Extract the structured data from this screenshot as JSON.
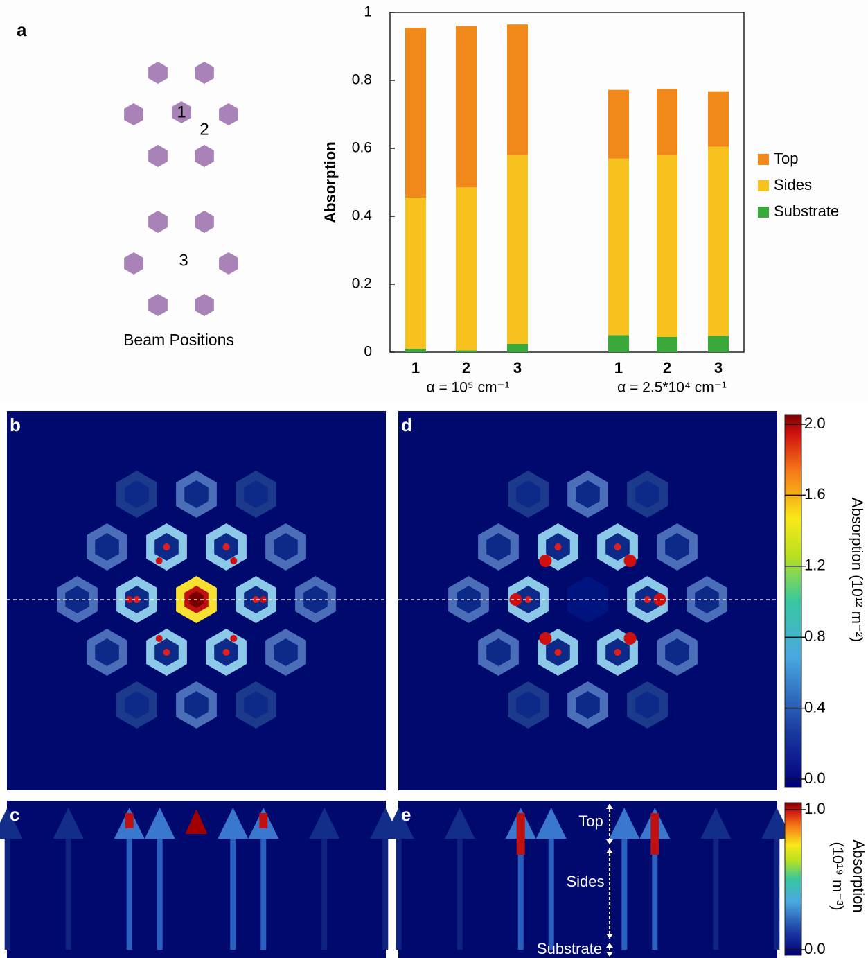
{
  "panel_labels": [
    "a",
    "b",
    "c",
    "d",
    "e"
  ],
  "beam_diagram": {
    "labels": [
      "1",
      "2",
      "3"
    ],
    "caption": "Beam Positions"
  },
  "chart_data": {
    "type": "bar",
    "stacked": true,
    "y_label": "Absorption",
    "categories": [
      "1",
      "2",
      "3",
      "1",
      "2",
      "3"
    ],
    "group_labels": [
      "α = 10⁵ cm⁻¹",
      "α = 2.5*10⁴ cm⁻¹"
    ],
    "series": [
      {
        "name": "Top",
        "color": "#f0891a",
        "values": [
          0.5,
          0.475,
          0.385,
          0.202,
          0.195,
          0.163
        ]
      },
      {
        "name": "Sides",
        "color": "#f7c11e",
        "values": [
          0.445,
          0.48,
          0.555,
          0.52,
          0.535,
          0.557
        ]
      },
      {
        "name": "Substrate",
        "color": "#3aa83a",
        "values": [
          0.01,
          0.005,
          0.025,
          0.05,
          0.045,
          0.048
        ]
      }
    ],
    "ylim": [
      0,
      1
    ],
    "yticks": [
      0,
      0.2,
      0.4,
      0.6,
      0.8,
      1
    ],
    "legend": "right"
  },
  "colorbar_top": {
    "label": "Absorption (10¹² m⁻²)",
    "ticks": [
      {
        "value": 0,
        "label": "0.0"
      },
      {
        "value": 0.4,
        "label": "0.4"
      },
      {
        "value": 0.8,
        "label": "0.8"
      },
      {
        "value": 1.2,
        "label": "1.2"
      },
      {
        "value": 1.6,
        "label": "1.6"
      },
      {
        "value": 2,
        "label": "2.0"
      }
    ]
  },
  "colorbar_bottom": {
    "label_lines": [
      "Absorption",
      "(10¹⁹ m⁻³)"
    ],
    "ticks": [
      {
        "value": 0,
        "label": "0.0"
      },
      {
        "value": 1,
        "label": "1.0"
      }
    ]
  },
  "panel_e_annotations": [
    "Top",
    "Sides",
    "Substrate"
  ]
}
